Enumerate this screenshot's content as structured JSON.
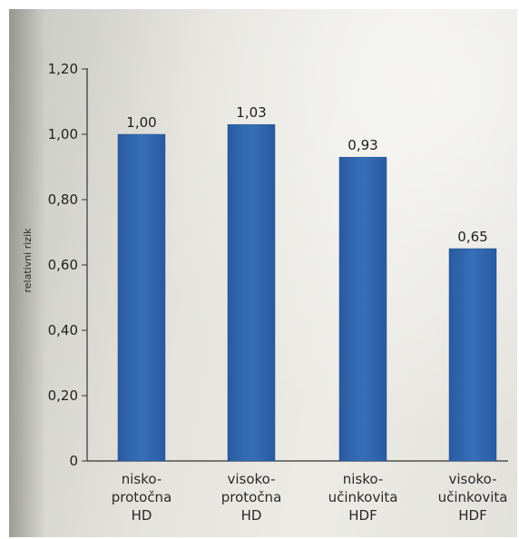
{
  "chart_data": {
    "type": "bar",
    "categories": [
      [
        "nisko-",
        "protočna",
        "HD"
      ],
      [
        "visoko-",
        "protočna",
        "HD"
      ],
      [
        "nisko-",
        "učinkovita",
        "HDF"
      ],
      [
        "visoko-",
        "učinkovita",
        "HDF"
      ]
    ],
    "values": [
      1.0,
      1.03,
      0.93,
      0.65
    ],
    "value_labels": [
      "1,00",
      "1,03",
      "0,93",
      "0,65"
    ],
    "ylabel": "relativni rizik",
    "xlabel": "",
    "ylim": [
      0,
      1.2
    ],
    "yticks": [
      0,
      0.2,
      0.4,
      0.6,
      0.8,
      1.0,
      1.2
    ],
    "ytick_labels": [
      "0",
      "0,20",
      "0,40",
      "0,60",
      "0,80",
      "1,00",
      "1,20"
    ],
    "grid": false,
    "bar_color": "#2f63a8"
  }
}
